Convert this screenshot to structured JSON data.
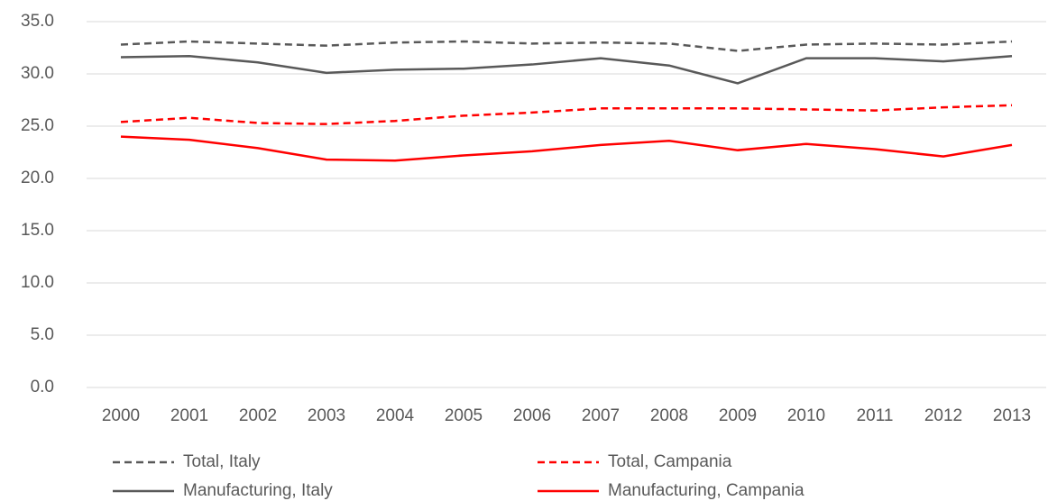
{
  "chart_data": {
    "type": "line",
    "categories": [
      "2000",
      "2001",
      "2002",
      "2003",
      "2004",
      "2005",
      "2006",
      "2007",
      "2008",
      "2009",
      "2010",
      "2011",
      "2012",
      "2013"
    ],
    "series": [
      {
        "name": "Total, Italy",
        "color": "#595959",
        "linestyle": "dashed",
        "values": [
          32.8,
          33.1,
          32.9,
          32.7,
          33.0,
          33.1,
          32.9,
          33.0,
          32.9,
          32.2,
          32.8,
          32.9,
          32.8,
          33.1
        ]
      },
      {
        "name": "Total, Campania",
        "color": "#ff0000",
        "linestyle": "dashed",
        "values": [
          25.4,
          25.8,
          25.3,
          25.2,
          25.5,
          26.0,
          26.3,
          26.7,
          26.7,
          26.7,
          26.6,
          26.5,
          26.8,
          27.0
        ]
      },
      {
        "name": "Manufacturing, Italy",
        "color": "#595959",
        "linestyle": "solid",
        "values": [
          31.6,
          31.7,
          31.1,
          30.1,
          30.4,
          30.5,
          30.9,
          31.5,
          30.8,
          29.1,
          31.5,
          31.5,
          31.2,
          31.7
        ]
      },
      {
        "name": "Manufacturing, Campania",
        "color": "#ff0000",
        "linestyle": "solid",
        "values": [
          24.0,
          23.7,
          22.9,
          21.8,
          21.7,
          22.2,
          22.6,
          23.2,
          23.6,
          22.7,
          23.3,
          22.8,
          22.1,
          23.2
        ]
      }
    ],
    "ylim": [
      0,
      35
    ],
    "yticks": [
      {
        "value": 0,
        "label": "0.0"
      },
      {
        "value": 5,
        "label": "5.0"
      },
      {
        "value": 10,
        "label": "10.0"
      },
      {
        "value": 15,
        "label": "15.0"
      },
      {
        "value": 20,
        "label": "20.0"
      },
      {
        "value": 25,
        "label": "25.0"
      },
      {
        "value": 30,
        "label": "30.0"
      },
      {
        "value": 35,
        "label": "35.0"
      }
    ],
    "grid": true,
    "legend": "bottom"
  }
}
